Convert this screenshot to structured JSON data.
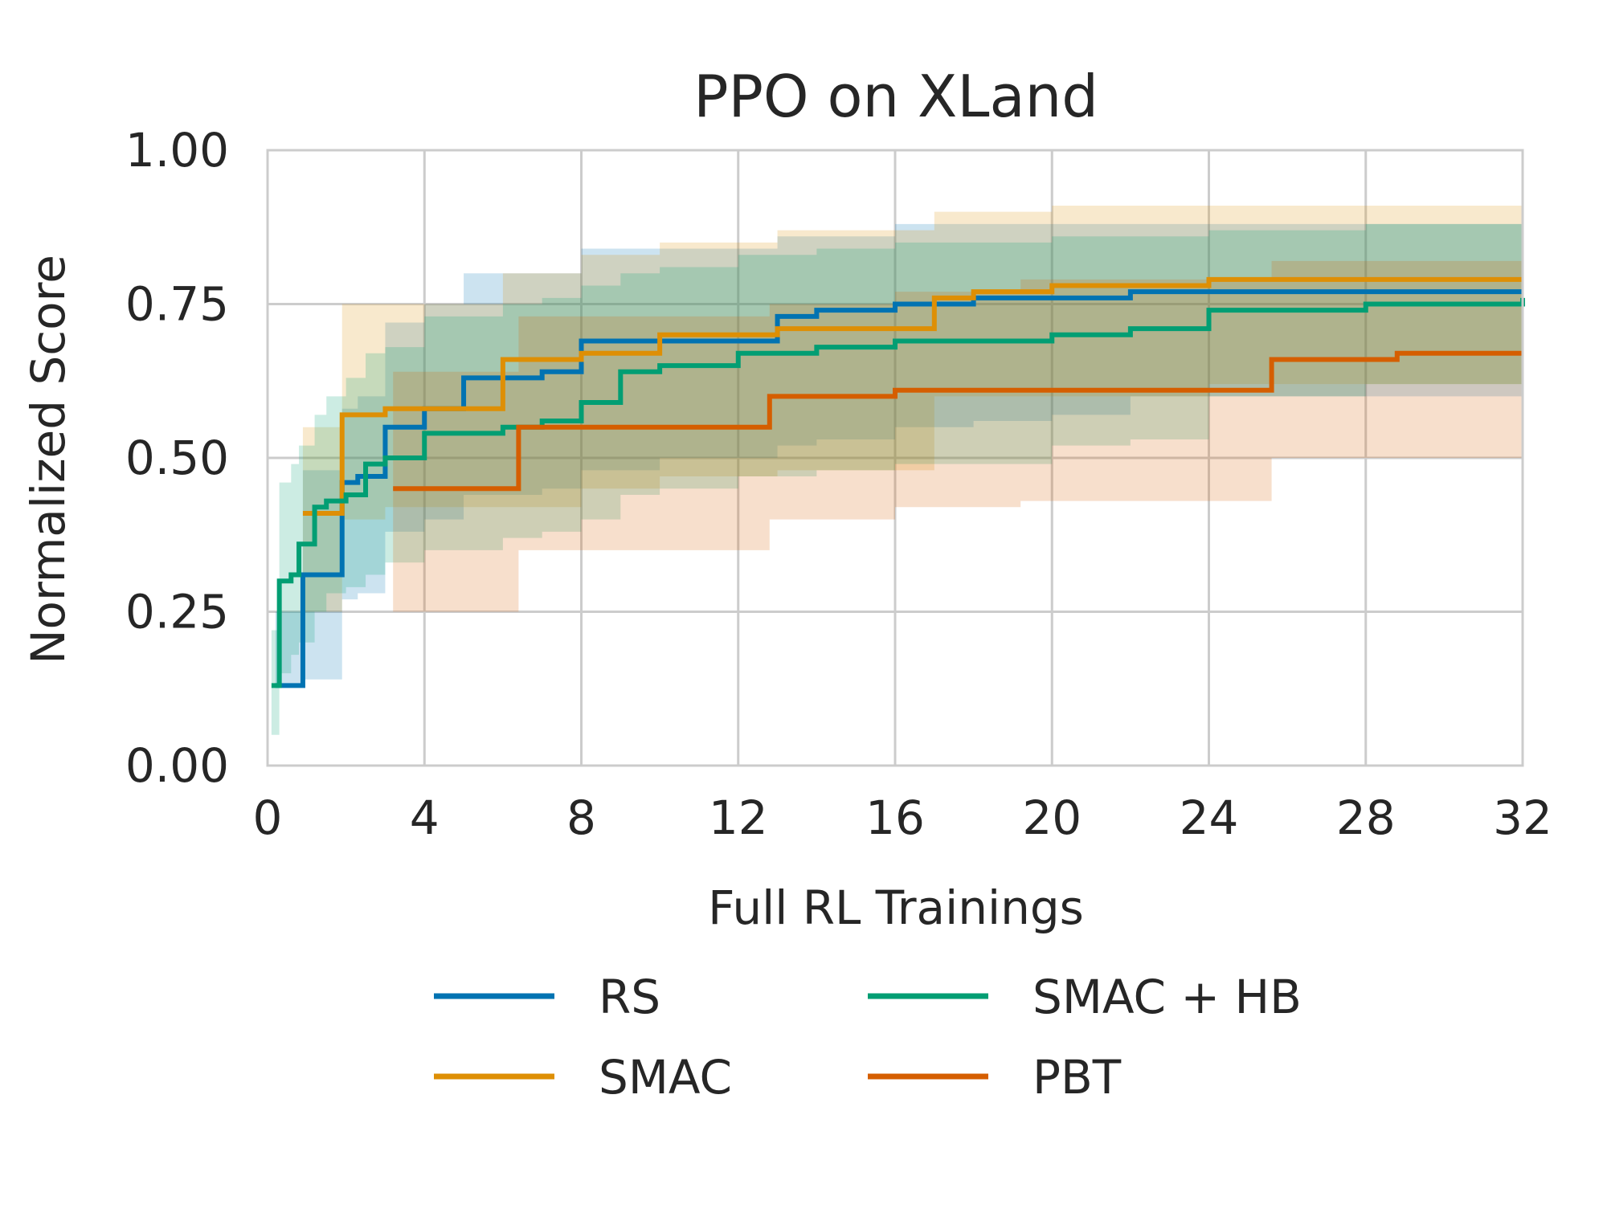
{
  "chart_data": {
    "type": "line",
    "title": "PPO on XLand",
    "xlabel": "Full RL Trainings",
    "ylabel": "Normalized Score",
    "xlim": [
      0,
      32
    ],
    "ylim": [
      0,
      1
    ],
    "xticks": [
      "0",
      "4",
      "8",
      "12",
      "16",
      "20",
      "24",
      "28",
      "32"
    ],
    "yticks": [
      "0.00",
      "0.25",
      "0.50",
      "0.75",
      "1.00"
    ],
    "grid": true,
    "legend_placement": "bottom-center",
    "series": [
      {
        "name": "RS",
        "color": "#0173b2",
        "x": [
          0.2,
          0.9,
          1.9,
          2.3,
          3.0,
          4.0,
          5.0,
          7.0,
          8.0,
          10.0,
          13.0,
          14.0,
          16.0,
          18.0,
          20.0,
          22.0,
          32.0
        ],
        "y": [
          0.13,
          0.31,
          0.46,
          0.47,
          0.55,
          0.58,
          0.63,
          0.64,
          0.69,
          0.69,
          0.73,
          0.74,
          0.75,
          0.76,
          0.76,
          0.77,
          0.77
        ],
        "lower": [
          0.13,
          0.14,
          0.27,
          0.28,
          0.38,
          0.4,
          0.44,
          0.45,
          0.48,
          0.5,
          0.52,
          0.53,
          0.55,
          0.56,
          0.57,
          0.6,
          0.64
        ],
        "upper": [
          0.25,
          0.48,
          0.58,
          0.6,
          0.72,
          0.75,
          0.8,
          0.8,
          0.84,
          0.84,
          0.86,
          0.86,
          0.88,
          0.88,
          0.88,
          0.88,
          0.88
        ]
      },
      {
        "name": "SMAC",
        "color": "#de8f05",
        "x": [
          0.9,
          1.9,
          3.0,
          6.0,
          8.0,
          10.0,
          13.0,
          17.0,
          18.0,
          20.0,
          24.0,
          32.0
        ],
        "y": [
          0.41,
          0.57,
          0.58,
          0.66,
          0.67,
          0.7,
          0.71,
          0.76,
          0.77,
          0.78,
          0.79,
          0.79
        ],
        "lower": [
          0.25,
          0.4,
          0.42,
          0.42,
          0.45,
          0.47,
          0.48,
          0.6,
          0.6,
          0.6,
          0.62,
          0.64
        ],
        "upper": [
          0.55,
          0.75,
          0.75,
          0.8,
          0.83,
          0.85,
          0.87,
          0.9,
          0.9,
          0.91,
          0.91,
          0.91
        ]
      },
      {
        "name": "SMAC + HB",
        "color": "#029e73",
        "x": [
          0.1,
          0.3,
          0.6,
          0.8,
          1.2,
          1.5,
          2.0,
          2.5,
          3.0,
          4.0,
          6.0,
          7.0,
          8.0,
          9.0,
          10.0,
          12.0,
          14.0,
          16.0,
          20.0,
          22.0,
          24.0,
          28.0,
          32.0
        ],
        "y": [
          0.13,
          0.3,
          0.31,
          0.36,
          0.42,
          0.43,
          0.44,
          0.49,
          0.5,
          0.54,
          0.55,
          0.56,
          0.59,
          0.64,
          0.65,
          0.67,
          0.68,
          0.69,
          0.7,
          0.71,
          0.74,
          0.75,
          0.76
        ],
        "lower": [
          0.05,
          0.15,
          0.18,
          0.2,
          0.25,
          0.28,
          0.29,
          0.31,
          0.33,
          0.35,
          0.37,
          0.38,
          0.4,
          0.44,
          0.45,
          0.47,
          0.48,
          0.49,
          0.52,
          0.53,
          0.6,
          0.62,
          0.63
        ],
        "upper": [
          0.22,
          0.46,
          0.49,
          0.52,
          0.57,
          0.6,
          0.63,
          0.67,
          0.68,
          0.73,
          0.75,
          0.76,
          0.78,
          0.8,
          0.81,
          0.83,
          0.84,
          0.85,
          0.86,
          0.86,
          0.87,
          0.88,
          0.88
        ]
      },
      {
        "name": "PBT",
        "color": "#d55e00",
        "x": [
          3.2,
          6.4,
          12.8,
          16.0,
          19.2,
          25.6,
          28.8,
          32.0
        ],
        "y": [
          0.45,
          0.55,
          0.6,
          0.61,
          0.61,
          0.66,
          0.67,
          0.67
        ],
        "lower": [
          0.25,
          0.35,
          0.4,
          0.42,
          0.43,
          0.5,
          0.5,
          0.5
        ],
        "upper": [
          0.64,
          0.73,
          0.75,
          0.77,
          0.79,
          0.82,
          0.82,
          0.82
        ]
      }
    ]
  }
}
